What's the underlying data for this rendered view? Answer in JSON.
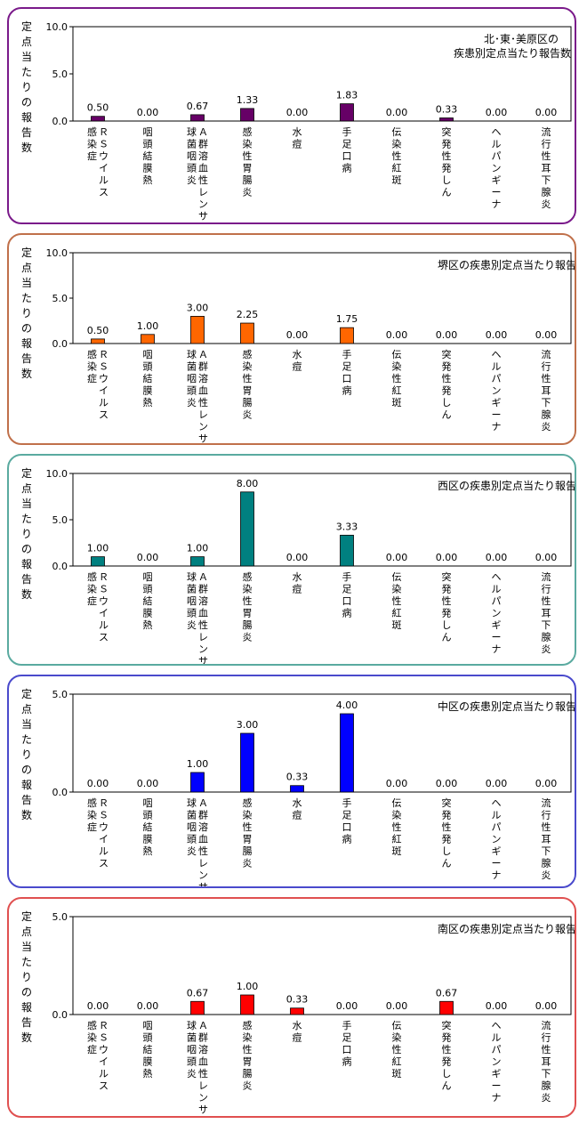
{
  "categories": [
    [
      "ＲＳウイルス",
      "感染症"
    ],
    [
      "咽頭結膜熱"
    ],
    [
      "Ａ群溶血性レンサ",
      "球菌咽頭炎"
    ],
    [
      "感染性胃腸炎"
    ],
    [
      "水痘"
    ],
    [
      "手足口病"
    ],
    [
      "伝染性紅斑"
    ],
    [
      "突発性発しん"
    ],
    [
      "ヘルパンギーナ"
    ],
    [
      "流行性耳下腺炎"
    ]
  ],
  "y_label": "定点当たりの報告数",
  "chart_data": [
    {
      "type": "bar",
      "title_lines": [
        "北･東･美原区の",
        "疾患別定点当たり報告数"
      ],
      "ylabel": "定点当たりの報告数",
      "ylim": [
        0,
        10
      ],
      "yticks": [
        "0.0",
        "5.0",
        "10.0"
      ],
      "values": [
        0.5,
        0.0,
        0.67,
        1.33,
        0.0,
        1.83,
        0.0,
        0.33,
        0.0,
        0.0
      ],
      "value_labels": [
        "0.50",
        "0.00",
        "0.67",
        "1.33",
        "0.00",
        "1.83",
        "0.00",
        "0.33",
        "0.00",
        "0.00"
      ],
      "bar_color": "#660066",
      "border_color": "#7a1a8a"
    },
    {
      "type": "bar",
      "title_lines": [
        "堺区の疾患別定点当たり報告数"
      ],
      "ylabel": "定点当たりの報告数",
      "ylim": [
        0,
        10
      ],
      "yticks": [
        "0.0",
        "5.0",
        "10.0"
      ],
      "values": [
        0.5,
        1.0,
        3.0,
        2.25,
        0.0,
        1.75,
        0.0,
        0.0,
        0.0,
        0.0
      ],
      "value_labels": [
        "0.50",
        "1.00",
        "3.00",
        "2.25",
        "0.00",
        "1.75",
        "0.00",
        "0.00",
        "0.00",
        "0.00"
      ],
      "bar_color": "#ff6600",
      "border_color": "#c0704a"
    },
    {
      "type": "bar",
      "title_lines": [
        "西区の疾患別定点当たり報告数"
      ],
      "ylabel": "定点当たりの報告数",
      "ylim": [
        0,
        10
      ],
      "yticks": [
        "0.0",
        "5.0",
        "10.0"
      ],
      "values": [
        1.0,
        0.0,
        1.0,
        8.0,
        0.0,
        3.33,
        0.0,
        0.0,
        0.0,
        0.0
      ],
      "value_labels": [
        "1.00",
        "0.00",
        "1.00",
        "8.00",
        "0.00",
        "3.33",
        "0.00",
        "0.00",
        "0.00",
        "0.00"
      ],
      "bar_color": "#008080",
      "border_color": "#5aaaa0"
    },
    {
      "type": "bar",
      "title_lines": [
        "中区の疾患別定点当たり報告数"
      ],
      "ylabel": "定点当たりの報告数",
      "ylim": [
        0,
        5
      ],
      "yticks": [
        "0.0",
        "5.0"
      ],
      "values": [
        0.0,
        0.0,
        1.0,
        3.0,
        0.33,
        4.0,
        0.0,
        0.0,
        0.0,
        0.0
      ],
      "value_labels": [
        "0.00",
        "0.00",
        "1.00",
        "3.00",
        "0.33",
        "4.00",
        "0.00",
        "0.00",
        "0.00",
        "0.00"
      ],
      "bar_color": "#0000ff",
      "border_color": "#4a4acc"
    },
    {
      "type": "bar",
      "title_lines": [
        "南区の疾患別定点当たり報告数"
      ],
      "ylabel": "定点当たりの報告数",
      "ylim": [
        0,
        5
      ],
      "yticks": [
        "0.0",
        "5.0"
      ],
      "values": [
        0.0,
        0.0,
        0.67,
        1.0,
        0.33,
        0.0,
        0.0,
        0.67,
        0.0,
        0.0
      ],
      "value_labels": [
        "0.00",
        "0.00",
        "0.67",
        "1.00",
        "0.33",
        "0.00",
        "0.00",
        "0.67",
        "0.00",
        "0.00"
      ],
      "bar_color": "#ff0000",
      "border_color": "#e05050"
    }
  ]
}
